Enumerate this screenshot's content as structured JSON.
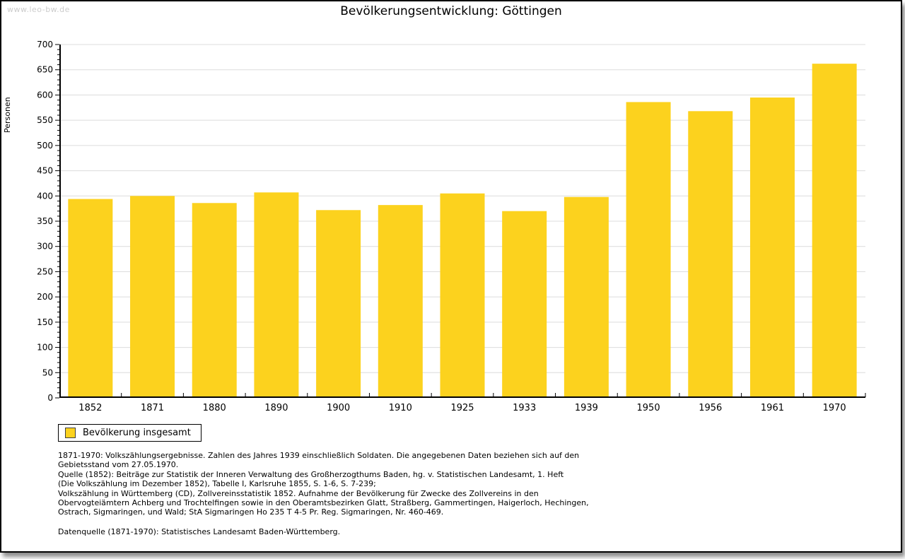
{
  "watermark": "www.leo-bw.de",
  "title": "Bevölkerungsentwicklung: Göttingen",
  "chart_data": {
    "type": "bar",
    "title": "Bevölkerungsentwicklung: Göttingen",
    "xlabel": "",
    "ylabel": "Personen",
    "categories": [
      "1852",
      "1871",
      "1880",
      "1890",
      "1900",
      "1910",
      "1925",
      "1933",
      "1939",
      "1950",
      "1956",
      "1961",
      "1970"
    ],
    "series": [
      {
        "name": "Bevölkerung insgesamt",
        "values": [
          394,
          400,
          386,
          407,
          372,
          382,
          405,
          370,
          398,
          586,
          568,
          595,
          662
        ]
      }
    ],
    "ylim": [
      0,
      700
    ],
    "ytick_step": 50,
    "yminor_step": 10,
    "grid": true,
    "legend_position": "bottom-left",
    "bar_color": "#FCD21E",
    "grid_color": "#DCDCDC",
    "axis_color": "#000000"
  },
  "legend": {
    "label": "Bevölkerung insgesamt",
    "swatch_color": "#FCD21E"
  },
  "footnotes": {
    "lines": [
      "1871-1970: Volkszählungsergebnisse. Zahlen des Jahres 1939 einschließlich Soldaten. Die angegebenen Daten beziehen sich auf den",
      "Gebietsstand vom 27.05.1970.",
      "Quelle (1852): Beiträge zur Statistik der Inneren Verwaltung des Großherzogthums Baden, hg. v. Statistischen Landesamt, 1. Heft",
      "(Die Volkszählung im Dezember 1852), Tabelle I, Karlsruhe 1855, S. 1-6, S. 7-239;",
      "Volkszählung in Württemberg (CD), Zollvereinsstatistik 1852. Aufnahme der Bevölkerung für Zwecke des Zollvereins in den",
      "Obervogteiämtern Achberg und Trochtelfingen sowie in den Oberamtsbezirken Glatt, Straßberg, Gammertingen, Haigerloch, Hechingen,",
      "Ostrach, Sigmaringen, und Wald; StA Sigmaringen Ho 235 T 4-5 Pr. Reg. Sigmaringen, Nr. 460-469."
    ],
    "datasource": "Datenquelle (1871-1970): Statistisches Landesamt Baden-Württemberg."
  }
}
